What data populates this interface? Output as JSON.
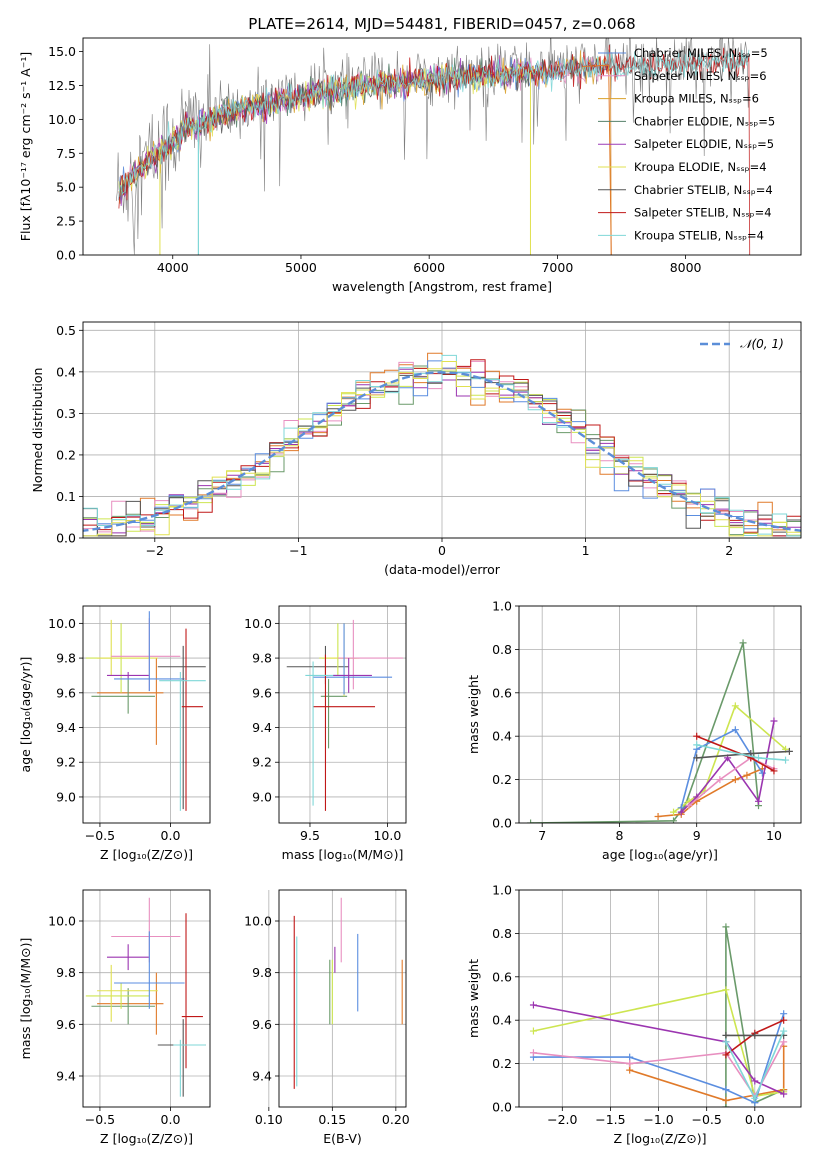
{
  "colors": {
    "chabrier_miles": "#5a88d8",
    "salpeter_miles": "#e58fc4",
    "kroupa_miles": "#d9a02a",
    "chabrier_elodie": "#55806a",
    "salpeter_elodie": "#9b3bb7",
    "kroupa_elodie": "#e0e050",
    "chabrier_stelib": "#555555",
    "salpeter_stelib": "#c01818",
    "kroupa_stelib": "#7fd7d7",
    "orange": "#e07a2a",
    "olive": "#6a9a6a",
    "lime": "#cde550",
    "purple": "#9b35b0",
    "pink": "#e88fc0",
    "blue": "#5b8ee0",
    "gray": "#7f7f7f",
    "normal": "#5b8ed8"
  },
  "chart_data": [
    {
      "id": "spectrum",
      "type": "line",
      "title": "PLATE=2614, MJD=54481, FIBERID=0457, z=0.068",
      "xlabel": "wavelength [Angstrom, rest frame]",
      "ylabel": "Flux [fλ10⁻¹⁷ erg cm⁻² s⁻¹ A⁻¹]",
      "xlim": [
        3300,
        8900
      ],
      "ylim": [
        0,
        16
      ],
      "xticks": [
        "4000",
        "5000",
        "6000",
        "7000",
        "8000"
      ],
      "yticks": [
        "0.0",
        "2.5",
        "5.0",
        "7.5",
        "10.0",
        "12.5",
        "15.0"
      ],
      "legend_position": "right",
      "legend": [
        "Chabrier MILES, Nₛₛₚ=5",
        "Salpeter MILES, Nₛₛₚ=6",
        "Kroupa MILES, Nₛₛₚ=6",
        "Chabrier ELODIE, Nₛₛₚ=5",
        "Salpeter ELODIE, Nₛₛₚ=5",
        "Kroupa ELODIE, Nₛₛₚ=4",
        "Chabrier STELIB, Nₛₛₚ=4",
        "Salpeter STELIB, Nₛₛₚ=4",
        "Kroupa STELIB, Nₛₛₚ=4"
      ],
      "continuum": [
        [
          3550,
          4.5
        ],
        [
          3700,
          6.2
        ],
        [
          3900,
          7.8
        ],
        [
          4100,
          9.5
        ],
        [
          4300,
          10.3
        ],
        [
          4600,
          11.2
        ],
        [
          5000,
          12.0
        ],
        [
          5500,
          12.8
        ],
        [
          6000,
          13.2
        ],
        [
          6500,
          13.6
        ],
        [
          7000,
          13.9
        ],
        [
          7500,
          14.2
        ],
        [
          8000,
          14.4
        ],
        [
          8500,
          14.6
        ]
      ]
    },
    {
      "id": "residuals",
      "type": "step",
      "xlabel": "(data-model)/error",
      "ylabel": "Normed distribution",
      "xlim": [
        -2.5,
        2.5
      ],
      "ylim": [
        0,
        0.52
      ],
      "xticks": [
        "−2",
        "−1",
        "0",
        "1",
        "2"
      ],
      "yticks": [
        "0.0",
        "0.1",
        "0.2",
        "0.3",
        "0.4",
        "0.5"
      ],
      "legend": [
        "𝒩(0, 1)"
      ],
      "legend_position": "top-right",
      "bin_width": 0.1
    },
    {
      "id": "age_vs_Z",
      "type": "errorbar",
      "xlabel": "Z [log₁₀(Z/Z⊙)]",
      "ylabel": "age  [log₁₀(age/yr)]",
      "xlim": [
        -0.62,
        0.28
      ],
      "ylim": [
        8.85,
        10.1
      ],
      "xticks": [
        "−0.5",
        "0.0"
      ],
      "yticks": [
        "9.0",
        "9.2",
        "9.4",
        "9.6",
        "9.8",
        "10.0"
      ],
      "points": [
        {
          "x": -0.1,
          "y": 9.6,
          "xerr": [
            0.42,
            0.05
          ],
          "yerr": [
            0.3,
            0.2
          ],
          "color": "orange"
        },
        {
          "x": -0.3,
          "y": 9.58,
          "xerr": [
            0.26,
            0.19
          ],
          "yerr": [
            0.1,
            0.1
          ],
          "color": "olive"
        },
        {
          "x": -0.35,
          "y": 9.8,
          "xerr": [
            0.25,
            0.2
          ],
          "yerr": [
            0.2,
            0.2
          ],
          "color": "lime"
        },
        {
          "x": -0.42,
          "y": 9.8,
          "xerr": [
            0.1,
            0.33
          ],
          "yerr": [
            0.1,
            0.22
          ],
          "color": "kroupa_elodie"
        },
        {
          "x": -0.3,
          "y": 9.7,
          "xerr": [
            0.15,
            0.15
          ],
          "yerr": [
            0.02,
            0.02
          ],
          "color": "purple"
        },
        {
          "x": -0.15,
          "y": 9.81,
          "xerr": [
            0.27,
            0.22
          ],
          "yerr": [
            0.2,
            0.22
          ],
          "color": "pink"
        },
        {
          "x": -0.15,
          "y": 9.68,
          "xerr": [
            0.25,
            0.25
          ],
          "yerr": [
            0.07,
            0.39
          ],
          "color": "blue"
        },
        {
          "x": 0.09,
          "y": 9.75,
          "xerr": [
            0.18,
            0.16
          ],
          "yerr": [
            0.82,
            0.12
          ],
          "color": "chabrier_stelib"
        },
        {
          "x": 0.11,
          "y": 9.52,
          "xerr": [
            0.03,
            0.12
          ],
          "yerr": [
            0.6,
            0.45
          ],
          "color": "salpeter_stelib"
        },
        {
          "x": 0.07,
          "y": 9.67,
          "xerr": [
            0.15,
            0.18
          ],
          "yerr": [
            0.75,
            0.05
          ],
          "color": "kroupa_stelib"
        }
      ]
    },
    {
      "id": "age_vs_mass",
      "type": "errorbar",
      "xlabel": "mass [log₁₀(M/M⊙)]",
      "ylabel": "",
      "xlim": [
        9.3,
        10.12
      ],
      "ylim": [
        8.85,
        10.1
      ],
      "xticks": [
        "9.5",
        "10.0"
      ],
      "yticks": [
        "9.0",
        "9.2",
        "9.4",
        "9.6",
        "9.8",
        "10.0"
      ],
      "points": [
        {
          "x": 9.6,
          "y": 9.75,
          "xerr": [
            0.25,
            0.15
          ],
          "yerr": [
            0.1,
            0.12
          ],
          "color": "chabrier_stelib"
        },
        {
          "x": 9.62,
          "y": 9.58,
          "xerr": [
            0.05,
            0.12
          ],
          "yerr": [
            0.3,
            0.1
          ],
          "color": "olive"
        },
        {
          "x": 9.68,
          "y": 9.8,
          "xerr": [
            0.12,
            0.12
          ],
          "yerr": [
            0.1,
            0.2
          ],
          "color": "lime"
        },
        {
          "x": 9.72,
          "y": 9.8,
          "xerr": [
            0.14,
            0.1
          ],
          "yerr": [
            0.22,
            0.2
          ],
          "color": "kroupa_elodie"
        },
        {
          "x": 9.78,
          "y": 9.8,
          "xerr": [
            0.1,
            0.32
          ],
          "yerr": [
            0.18,
            0.22
          ],
          "color": "pink"
        },
        {
          "x": 9.72,
          "y": 9.69,
          "xerr": [
            0.2,
            0.31
          ],
          "yerr": [
            0.1,
            0.31
          ],
          "color": "blue"
        },
        {
          "x": 9.6,
          "y": 9.52,
          "xerr": [
            0.08,
            0.32
          ],
          "yerr": [
            0.6,
            0.3
          ],
          "color": "salpeter_stelib"
        },
        {
          "x": 9.52,
          "y": 9.7,
          "xerr": [
            0.05,
            0.2
          ],
          "yerr": [
            0.75,
            0.08
          ],
          "color": "kroupa_stelib"
        },
        {
          "x": 9.75,
          "y": 9.7,
          "xerr": [
            0.1,
            0.15
          ],
          "yerr": [
            0.1,
            0.1
          ],
          "color": "purple"
        }
      ]
    },
    {
      "id": "mass_weight_vs_age",
      "type": "line",
      "xlabel": "age  [log₁₀(age/yr)]",
      "ylabel": "mass weight",
      "xlim": [
        6.7,
        10.35
      ],
      "ylim": [
        0,
        1.0
      ],
      "xticks": [
        "7",
        "8",
        "9",
        "10"
      ],
      "yticks": [
        "0.0",
        "0.2",
        "0.4",
        "0.6",
        "0.8",
        "1.0"
      ],
      "series": [
        {
          "color": "olive",
          "x": [
            6.85,
            8.7,
            8.85,
            9.6,
            9.8
          ],
          "y": [
            0.0,
            0.01,
            0.08,
            0.83,
            0.08
          ]
        },
        {
          "color": "orange",
          "x": [
            8.5,
            8.8,
            9.0,
            9.5,
            9.65,
            9.85
          ],
          "y": [
            0.03,
            0.04,
            0.1,
            0.2,
            0.22,
            0.25
          ]
        },
        {
          "color": "lime",
          "x": [
            8.7,
            8.9,
            9.1,
            9.5,
            10.15
          ],
          "y": [
            0.05,
            0.1,
            0.15,
            0.54,
            0.34
          ]
        },
        {
          "color": "blue",
          "x": [
            8.8,
            9.0,
            9.5,
            9.85
          ],
          "y": [
            0.07,
            0.34,
            0.43,
            0.23
          ]
        },
        {
          "color": "purple",
          "x": [
            8.8,
            9.0,
            9.4,
            9.8,
            10.0
          ],
          "y": [
            0.05,
            0.12,
            0.3,
            0.1,
            0.47
          ]
        },
        {
          "color": "pink",
          "x": [
            8.9,
            9.3,
            9.7,
            10.0
          ],
          "y": [
            0.08,
            0.2,
            0.3,
            0.25
          ]
        },
        {
          "color": "salpeter_stelib",
          "x": [
            9.0,
            9.7,
            10.0
          ],
          "y": [
            0.4,
            0.3,
            0.24
          ]
        },
        {
          "color": "chabrier_stelib",
          "x": [
            9.0,
            9.7,
            10.2
          ],
          "y": [
            0.3,
            0.32,
            0.33
          ]
        },
        {
          "color": "kroupa_stelib",
          "x": [
            9.0,
            9.8,
            10.15
          ],
          "y": [
            0.36,
            0.3,
            0.29
          ]
        }
      ]
    },
    {
      "id": "mass_vs_Z",
      "type": "errorbar",
      "xlabel": "Z [log₁₀(Z/Z⊙)]",
      "ylabel": "mass [log₁₀(M/M⊙)]",
      "xlim": [
        -0.62,
        0.28
      ],
      "ylim": [
        9.28,
        10.12
      ],
      "xticks": [
        "−0.5",
        "0.0"
      ],
      "yticks": [
        "9.4",
        "9.6",
        "9.8",
        "10.0"
      ],
      "points": [
        {
          "x": -0.1,
          "y": 9.68,
          "xerr": [
            0.42,
            0.05
          ],
          "yerr": [
            0.12,
            0.12
          ],
          "color": "orange"
        },
        {
          "x": -0.3,
          "y": 9.67,
          "xerr": [
            0.26,
            0.19
          ],
          "yerr": [
            0.07,
            0.07
          ],
          "color": "olive"
        },
        {
          "x": -0.35,
          "y": 9.71,
          "xerr": [
            0.25,
            0.2
          ],
          "yerr": [
            0.05,
            0.05
          ],
          "color": "lime"
        },
        {
          "x": -0.42,
          "y": 9.73,
          "xerr": [
            0.1,
            0.33
          ],
          "yerr": [
            0.12,
            0.1
          ],
          "color": "kroupa_elodie"
        },
        {
          "x": -0.3,
          "y": 9.86,
          "xerr": [
            0.15,
            0.15
          ],
          "yerr": [
            0.05,
            0.05
          ],
          "color": "purple"
        },
        {
          "x": -0.15,
          "y": 9.94,
          "xerr": [
            0.27,
            0.22
          ],
          "yerr": [
            0.1,
            0.15
          ],
          "color": "pink"
        },
        {
          "x": -0.15,
          "y": 9.76,
          "xerr": [
            0.25,
            0.25
          ],
          "yerr": [
            0.1,
            0.2
          ],
          "color": "blue"
        },
        {
          "x": 0.09,
          "y": 9.52,
          "xerr": [
            0.18,
            0.16
          ],
          "yerr": [
            0.2,
            0.1
          ],
          "color": "chabrier_stelib"
        },
        {
          "x": 0.11,
          "y": 9.63,
          "xerr": [
            0.03,
            0.12
          ],
          "yerr": [
            0.2,
            0.4
          ],
          "color": "salpeter_stelib"
        },
        {
          "x": 0.07,
          "y": 9.52,
          "xerr": [
            0.05,
            0.18
          ],
          "yerr": [
            0.2,
            0.02
          ],
          "color": "kroupa_stelib"
        }
      ]
    },
    {
      "id": "mass_vs_ebv",
      "type": "errorbar",
      "xlabel": "E(B-V)",
      "ylabel": "",
      "xlim": [
        0.108,
        0.208
      ],
      "ylim": [
        9.28,
        10.12
      ],
      "xticks": [
        "0.10",
        "0.15",
        "0.20"
      ],
      "yticks": [
        "9.4",
        "9.6",
        "9.8",
        "10.0"
      ],
      "points": [
        {
          "x": 0.12,
          "y": 9.65,
          "yerr": [
            0.3,
            0.37
          ],
          "color": "salpeter_stelib"
        },
        {
          "x": 0.122,
          "y": 9.6,
          "yerr": [
            0.24,
            0.34
          ],
          "color": "kroupa_stelib"
        },
        {
          "x": 0.148,
          "y": 9.75,
          "yerr": [
            0.15,
            0.1
          ],
          "color": "olive"
        },
        {
          "x": 0.15,
          "y": 9.75,
          "yerr": [
            0.15,
            0.1
          ],
          "color": "lime"
        },
        {
          "x": 0.152,
          "y": 9.85,
          "yerr": [
            0.05,
            0.05
          ],
          "color": "purple"
        },
        {
          "x": 0.157,
          "y": 9.96,
          "yerr": [
            0.12,
            0.13
          ],
          "color": "pink"
        },
        {
          "x": 0.17,
          "y": 9.8,
          "yerr": [
            0.15,
            0.15
          ],
          "color": "blue"
        },
        {
          "x": 0.205,
          "y": 9.73,
          "yerr": [
            0.13,
            0.12
          ],
          "color": "orange"
        }
      ]
    },
    {
      "id": "mass_weight_vs_Z",
      "type": "line",
      "xlabel": "Z [log₁₀(Z/Z⊙)]",
      "ylabel": "mass weight",
      "xlim": [
        -2.45,
        0.48
      ],
      "ylim": [
        0,
        1.0
      ],
      "xticks": [
        "−2.0",
        "−1.5",
        "−1.0",
        "−0.5",
        "0.0"
      ],
      "yticks": [
        "0.0",
        "0.2",
        "0.4",
        "0.6",
        "0.8",
        "1.0"
      ],
      "series": [
        {
          "color": "olive",
          "x": [
            -0.3,
            -0.3,
            0.0,
            0.3
          ],
          "y": [
            0.0,
            0.83,
            0.02,
            0.08
          ]
        },
        {
          "color": "orange",
          "x": [
            -1.3,
            -1.3,
            -0.3,
            0.3,
            0.3
          ],
          "y": [
            0.2,
            0.17,
            0.03,
            0.08,
            0.28
          ]
        },
        {
          "color": "lime",
          "x": [
            -2.3,
            -0.3,
            0.0,
            0.3
          ],
          "y": [
            0.35,
            0.54,
            0.05,
            0.07
          ]
        },
        {
          "color": "blue",
          "x": [
            -2.3,
            -1.3,
            -0.3,
            0.0,
            0.3
          ],
          "y": [
            0.23,
            0.23,
            0.08,
            0.02,
            0.43
          ]
        },
        {
          "color": "purple",
          "x": [
            -2.3,
            -0.3,
            0.0,
            0.3
          ],
          "y": [
            0.47,
            0.3,
            0.12,
            0.06
          ]
        },
        {
          "color": "pink",
          "x": [
            -2.3,
            -1.3,
            -0.3,
            0.0,
            0.3
          ],
          "y": [
            0.25,
            0.2,
            0.25,
            0.05,
            0.3
          ]
        },
        {
          "color": "salpeter_stelib",
          "x": [
            -0.3,
            0.0,
            0.3
          ],
          "y": [
            0.24,
            0.34,
            0.4
          ]
        },
        {
          "color": "chabrier_stelib",
          "x": [
            -0.3,
            0.0,
            0.3
          ],
          "y": [
            0.33,
            0.33,
            0.33
          ]
        },
        {
          "color": "kroupa_stelib",
          "x": [
            -0.3,
            0.0,
            0.3
          ],
          "y": [
            0.3,
            0.04,
            0.35
          ]
        }
      ]
    }
  ]
}
